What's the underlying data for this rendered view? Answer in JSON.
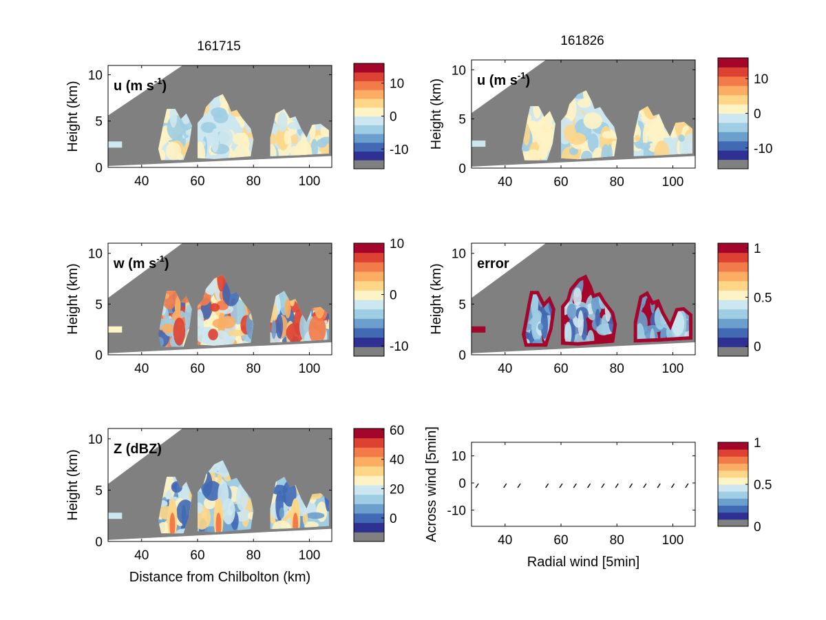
{
  "figure": {
    "column_titles": [
      "161715",
      "161826"
    ]
  },
  "chart_data": [
    {
      "id": "u1",
      "type": "heatmap",
      "field_label_main": "u (m s",
      "field_label_sup": "-1",
      "field_label_close": ")",
      "title": "161715",
      "xlim": [
        28,
        108
      ],
      "ylim": [
        0,
        11
      ],
      "xticks": [
        40,
        60,
        80,
        100
      ],
      "yticks": [
        0,
        5,
        10
      ],
      "ylabel": "Height (km)",
      "xlabel": "",
      "colorbar": {
        "range": [
          -16,
          16
        ],
        "ticks": [
          10,
          0,
          -10
        ],
        "levels": 11
      },
      "grid": false
    },
    {
      "id": "u2",
      "type": "heatmap",
      "field_label_main": "u (m s",
      "field_label_sup": "-1",
      "field_label_close": ")",
      "title": "161826",
      "xlim": [
        28,
        108
      ],
      "ylim": [
        0,
        11
      ],
      "xticks": [
        40,
        60,
        80,
        100
      ],
      "yticks": [
        0,
        5,
        10
      ],
      "ylabel": "Height (km)",
      "xlabel": "",
      "colorbar": {
        "range": [
          -16,
          16
        ],
        "ticks": [
          10,
          0,
          -10
        ],
        "levels": 11
      },
      "grid": false
    },
    {
      "id": "w",
      "type": "heatmap",
      "field_label_main": "w (m s",
      "field_label_sup": "-1",
      "field_label_close": ")",
      "title": "",
      "xlim": [
        28,
        108
      ],
      "ylim": [
        0,
        11
      ],
      "xticks": [
        40,
        60,
        80,
        100
      ],
      "yticks": [
        0,
        5,
        10
      ],
      "ylabel": "Height (km)",
      "xlabel": "",
      "colorbar": {
        "range": [
          -12,
          10
        ],
        "ticks": [
          10,
          0,
          -10
        ],
        "levels": 11
      },
      "grid": false
    },
    {
      "id": "err",
      "type": "heatmap",
      "field_label_main": "error",
      "field_label_sup": "",
      "field_label_close": "",
      "title": "",
      "xlim": [
        28,
        108
      ],
      "ylim": [
        0,
        11
      ],
      "xticks": [
        40,
        60,
        80,
        100
      ],
      "yticks": [
        0,
        5,
        10
      ],
      "ylabel": "Height (km)",
      "xlabel": "",
      "colorbar": {
        "range": [
          -0.1,
          1.05
        ],
        "ticks": [
          1,
          0.5,
          0
        ],
        "levels": 11
      },
      "grid": false
    },
    {
      "id": "z",
      "type": "heatmap",
      "field_label_main": "Z (dBZ)",
      "field_label_sup": "",
      "field_label_close": "",
      "title": "",
      "xlim": [
        28,
        108
      ],
      "ylim": [
        0,
        11
      ],
      "xticks": [
        40,
        60,
        80,
        100
      ],
      "yticks": [
        0,
        5,
        10
      ],
      "ylabel": "Height (km)",
      "xlabel": "Distance from Chilbolton (km)",
      "colorbar": {
        "range": [
          -16,
          61
        ],
        "ticks": [
          60,
          40,
          20,
          0
        ],
        "levels": 11
      },
      "grid": false
    },
    {
      "id": "q",
      "type": "scatter",
      "title": "",
      "xlim": [
        28,
        108
      ],
      "ylim": [
        -16,
        15
      ],
      "xticks": [
        40,
        60,
        80,
        100
      ],
      "yticks": [
        10,
        0,
        -10
      ],
      "ylabel": "Across wind [5min]",
      "xlabel": "Radial wind [5min]",
      "x": [
        30,
        40,
        45,
        55,
        60,
        65,
        70,
        75,
        80,
        85,
        90,
        95,
        100,
        105
      ],
      "y": [
        -1,
        -1,
        -1,
        -1,
        -1,
        -1,
        -1,
        -1,
        -1,
        -1,
        -1,
        -1,
        -1,
        -1
      ],
      "colorbar": {
        "range": [
          0,
          1
        ],
        "ticks": [
          1,
          0.5,
          0
        ],
        "levels": 11
      },
      "grid": false
    }
  ],
  "colors": {
    "missing": "#808080",
    "scale": [
      "#313695",
      "#4575b4",
      "#74add1",
      "#abd9e9",
      "#e0f3f8",
      "#fee090",
      "#fdae61",
      "#f46d43",
      "#d73027",
      "#a50026"
    ],
    "scale11": [
      "#2e3191",
      "#4169b4",
      "#6d9fcc",
      "#9fcde3",
      "#cde7f0",
      "#fef3c4",
      "#fdd687",
      "#fbae63",
      "#f37b4a",
      "#dd4132",
      "#a3062a"
    ]
  }
}
